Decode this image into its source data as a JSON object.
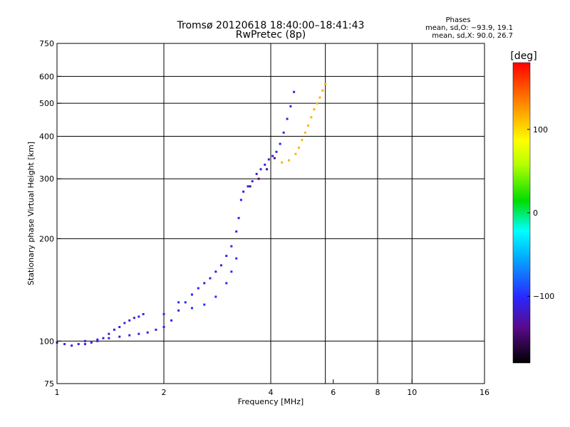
{
  "chart_data": {
    "type": "scatter",
    "title": "Tromsø 20120618 18:40:00–18:41:43",
    "subtitle": "RwPretec (8p)",
    "xlabel": "Frequency [MHz]",
    "ylabel": "Stationary phase Virtual Height [km]",
    "x_scale": "log",
    "y_scale": "log",
    "xlim": [
      1,
      16
    ],
    "ylim": [
      75,
      750
    ],
    "x_ticks": [
      1,
      2,
      4,
      6,
      8,
      10,
      16
    ],
    "x_tick_labels": [
      "1",
      "2",
      "4",
      "6",
      "8",
      "10",
      "16"
    ],
    "y_ticks": [
      75,
      100,
      200,
      300,
      400,
      500,
      600,
      750
    ],
    "y_tick_labels": [
      "75",
      "100",
      "200",
      "300",
      "400",
      "500",
      "600",
      "750"
    ],
    "grid": true,
    "vertical_lines": [
      2,
      4,
      5.7,
      8,
      10
    ],
    "phase_box": {
      "title": "Phases",
      "line_o": "mean, sd,O: −93.9, 19.1",
      "line_x": "mean, sd,X: 90.0, 26.7"
    },
    "colorbar": {
      "label": "[deg]",
      "range": [
        -180,
        180
      ],
      "ticks": [
        100,
        0,
        -100
      ],
      "tick_labels": [
        "100",
        "0",
        "−100"
      ]
    },
    "traces": [
      {
        "phase_deg": -110,
        "points": [
          [
            1.0,
            99
          ],
          [
            1.05,
            98
          ],
          [
            1.1,
            97
          ],
          [
            1.15,
            98
          ],
          [
            1.2,
            98
          ],
          [
            1.25,
            99
          ],
          [
            1.3,
            100
          ],
          [
            1.35,
            102
          ],
          [
            1.4,
            105
          ],
          [
            1.45,
            108
          ],
          [
            1.5,
            110
          ],
          [
            1.55,
            113
          ],
          [
            1.6,
            115
          ],
          [
            1.65,
            117
          ],
          [
            1.7,
            118
          ],
          [
            1.75,
            120
          ]
        ]
      },
      {
        "phase_deg": -110,
        "points": [
          [
            1.2,
            100
          ],
          [
            1.3,
            101
          ],
          [
            1.4,
            102
          ],
          [
            1.5,
            103
          ],
          [
            1.6,
            104
          ],
          [
            1.7,
            105
          ],
          [
            1.8,
            106
          ],
          [
            1.9,
            108
          ],
          [
            2.0,
            110
          ],
          [
            2.1,
            115
          ],
          [
            2.2,
            123
          ],
          [
            2.3,
            130
          ],
          [
            2.4,
            137
          ],
          [
            2.5,
            143
          ],
          [
            2.6,
            148
          ],
          [
            2.7,
            153
          ],
          [
            2.8,
            160
          ],
          [
            2.9,
            167
          ],
          [
            3.0,
            178
          ],
          [
            3.1,
            190
          ],
          [
            3.2,
            210
          ],
          [
            3.25,
            230
          ],
          [
            3.3,
            260
          ],
          [
            3.35,
            275
          ],
          [
            3.45,
            285
          ],
          [
            3.55,
            295
          ],
          [
            3.65,
            310
          ],
          [
            3.75,
            320
          ],
          [
            3.85,
            330
          ],
          [
            3.95,
            342
          ],
          [
            4.05,
            350
          ],
          [
            4.15,
            360
          ],
          [
            4.25,
            380
          ],
          [
            4.35,
            410
          ],
          [
            4.45,
            450
          ],
          [
            4.55,
            490
          ],
          [
            4.65,
            540
          ]
        ]
      },
      {
        "phase_deg": -100,
        "points": [
          [
            2.0,
            120
          ],
          [
            2.2,
            130
          ],
          [
            2.4,
            125
          ],
          [
            2.6,
            128
          ],
          [
            2.8,
            135
          ],
          [
            3.0,
            148
          ],
          [
            3.1,
            160
          ],
          [
            3.2,
            175
          ]
        ]
      },
      {
        "phase_deg": 115,
        "points": [
          [
            4.3,
            335
          ],
          [
            4.5,
            340
          ],
          [
            4.7,
            355
          ],
          [
            4.8,
            370
          ],
          [
            4.9,
            390
          ],
          [
            5.0,
            410
          ],
          [
            5.1,
            430
          ],
          [
            5.2,
            455
          ],
          [
            5.3,
            480
          ],
          [
            5.4,
            500
          ],
          [
            5.5,
            520
          ],
          [
            5.6,
            545
          ],
          [
            5.7,
            570
          ]
        ]
      },
      {
        "phase_deg": -140,
        "points": [
          [
            3.5,
            285
          ],
          [
            3.7,
            300
          ],
          [
            3.9,
            320
          ],
          [
            4.1,
            345
          ]
        ]
      }
    ]
  }
}
